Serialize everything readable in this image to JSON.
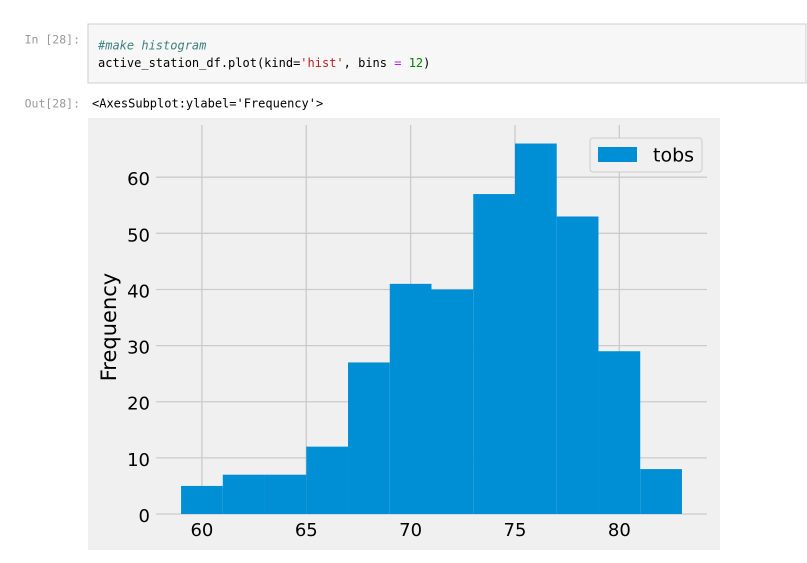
{
  "input_prompt": "In [28]:",
  "code": {
    "comment": "#make histogram",
    "line": [
      "active_station_df.plot(kind=",
      "'hist'",
      ", bins ",
      "=",
      " ",
      "12",
      ")"
    ]
  },
  "output_prompt": "Out[28]:",
  "output_text": "<AxesSubplot:ylabel='Frequency'>",
  "chart_data": {
    "type": "histogram",
    "ylabel": "Frequency",
    "grid": true,
    "legend": "upper right",
    "series": [
      {
        "name": "tobs",
        "color": "#008fd5",
        "values": [
          5,
          7,
          7,
          12,
          27,
          41,
          40,
          57,
          66,
          53,
          29,
          8
        ]
      }
    ],
    "bins": [
      59,
      61,
      63,
      65,
      67,
      69,
      71,
      73,
      75,
      77,
      79,
      81,
      83
    ],
    "xlim": [
      57.8,
      84.2
    ],
    "xticks": [
      60,
      65,
      70,
      75,
      80
    ],
    "ylim": [
      0,
      69.3
    ],
    "yticks": [
      0,
      10,
      20,
      30,
      40,
      50,
      60
    ]
  }
}
